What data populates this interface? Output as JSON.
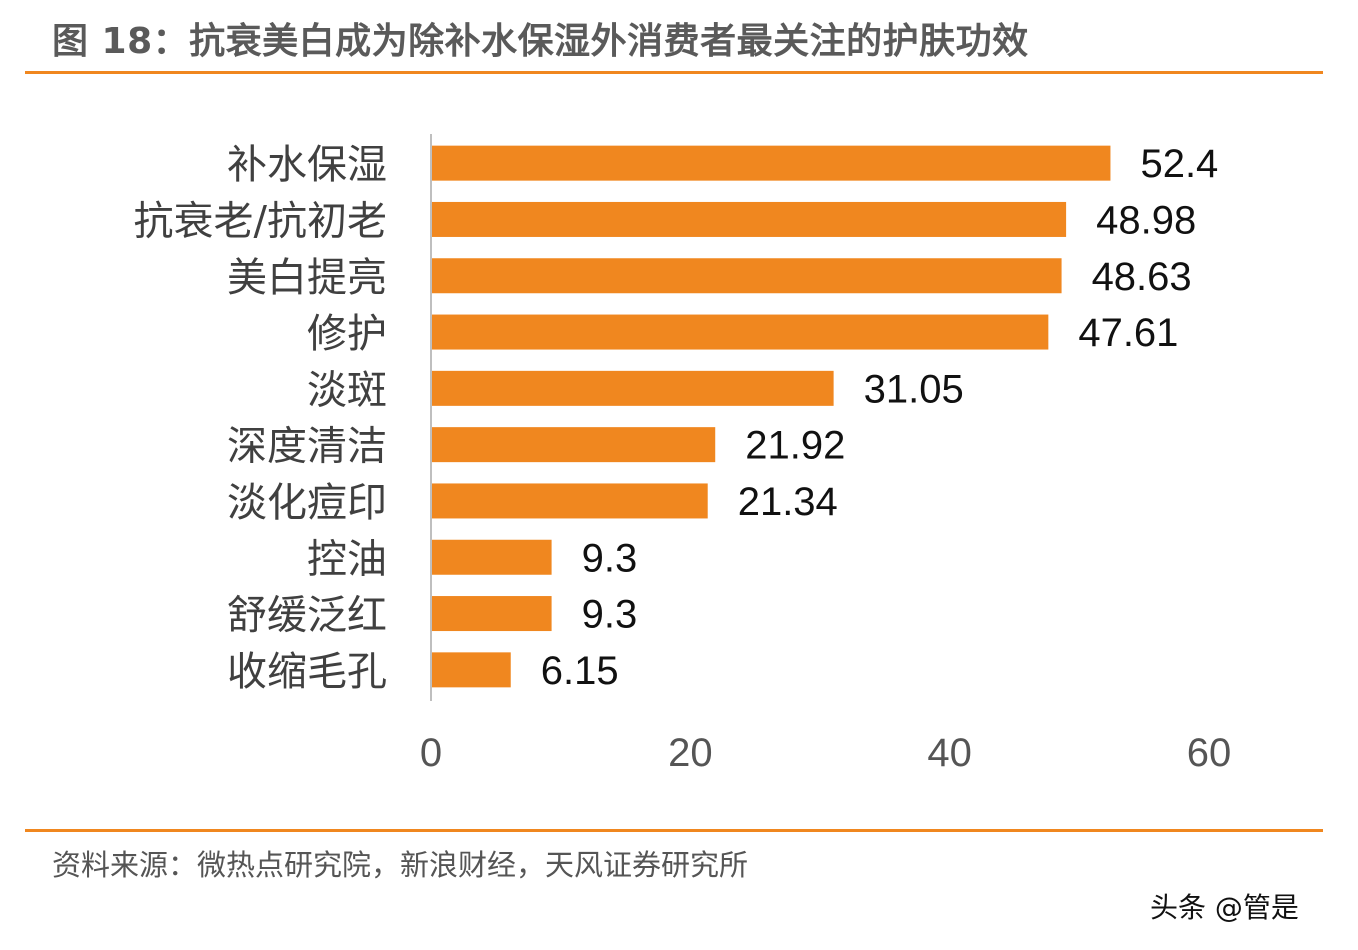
{
  "header": {
    "title": "图 18：抗衰美白成为除补水保湿外消费者最关注的护肤功效"
  },
  "footer": {
    "source": "资料来源：微热点研究院，新浪财经，天风证券研究所",
    "watermark": "头条 @管是"
  },
  "colors": {
    "bar": "#f0871f",
    "rule": "#f0871f",
    "axis": "#bfbfbf"
  },
  "chart_data": {
    "type": "bar",
    "orientation": "horizontal",
    "title": "图 18：抗衰美白成为除补水保湿外消费者最关注的护肤功效",
    "xlabel": "",
    "ylabel": "",
    "categories": [
      "补水保湿",
      "抗衰老/抗初老",
      "美白提亮",
      "修护",
      "淡斑",
      "深度清洁",
      "淡化痘印",
      "控油",
      "舒缓泛红",
      "收缩毛孔"
    ],
    "values": [
      52.4,
      48.98,
      48.63,
      47.61,
      31.05,
      21.92,
      21.34,
      9.3,
      9.3,
      6.15
    ],
    "value_labels": [
      "52.4",
      "48.98",
      "48.63",
      "47.61",
      "31.05",
      "21.92",
      "21.34",
      "9.3",
      "9.3",
      "6.15"
    ],
    "xlim": [
      0,
      60
    ],
    "xticks": [
      0,
      20,
      40,
      60
    ],
    "grid": false,
    "legend": "none"
  }
}
